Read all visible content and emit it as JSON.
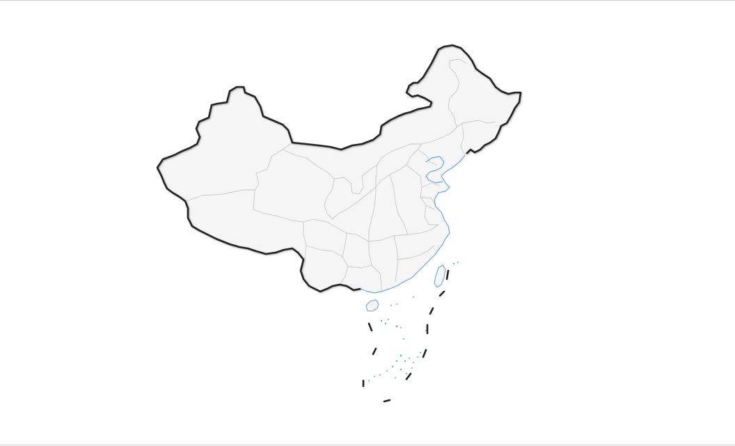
{
  "map": {
    "region": "china",
    "colors": {
      "land": "#f5f5f5",
      "national_border": "#222222",
      "coastline": "#6aa6dc",
      "province_border": "#c8c8c8",
      "background": "#ffffff"
    }
  }
}
